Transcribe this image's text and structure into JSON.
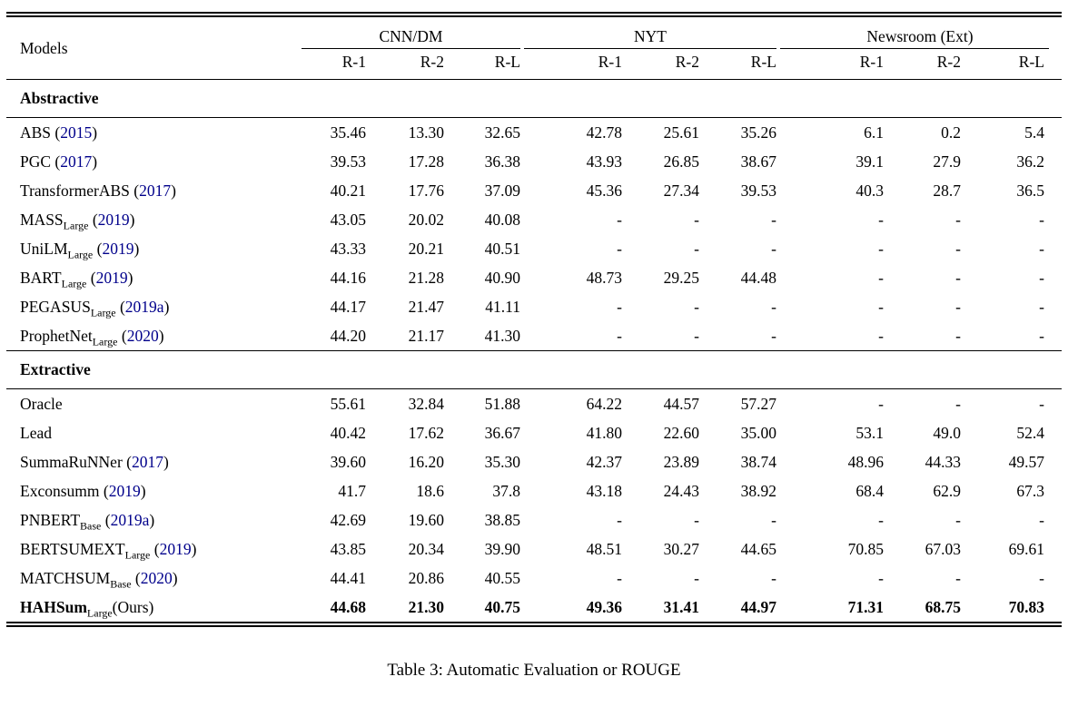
{
  "table": {
    "caption": "Table 3: Automatic Evaluation or ROUGE",
    "citation_color": "#00008B",
    "header": {
      "models_label": "Models",
      "groups": [
        {
          "label": "CNN/DM",
          "metrics": [
            "R-1",
            "R-2",
            "R-L"
          ]
        },
        {
          "label": "NYT",
          "metrics": [
            "R-1",
            "R-2",
            "R-L"
          ]
        },
        {
          "label": "Newsroom (Ext)",
          "metrics": [
            "R-1",
            "R-2",
            "R-L"
          ]
        }
      ]
    },
    "sections": [
      {
        "title": "Abstractive",
        "rows": [
          {
            "base": "ABS",
            "sub": "",
            "cite": "2015",
            "suffix": "",
            "bold": false,
            "values": [
              "35.46",
              "13.30",
              "32.65",
              "42.78",
              "25.61",
              "35.26",
              "6.1",
              "0.2",
              "5.4"
            ]
          },
          {
            "base": "PGC",
            "sub": "",
            "cite": "2017",
            "suffix": "",
            "bold": false,
            "values": [
              "39.53",
              "17.28",
              "36.38",
              "43.93",
              "26.85",
              "38.67",
              "39.1",
              "27.9",
              "36.2"
            ]
          },
          {
            "base": "TransformerABS",
            "sub": "",
            "cite": "2017",
            "suffix": "",
            "bold": false,
            "values": [
              "40.21",
              "17.76",
              "37.09",
              "45.36",
              "27.34",
              "39.53",
              "40.3",
              "28.7",
              "36.5"
            ]
          },
          {
            "base": "MASS",
            "sub": "Large",
            "cite": "2019",
            "suffix": "",
            "bold": false,
            "values": [
              "43.05",
              "20.02",
              "40.08",
              "-",
              "-",
              "-",
              "-",
              "-",
              "-"
            ]
          },
          {
            "base": "UniLM",
            "sub": "Large",
            "cite": "2019",
            "suffix": "",
            "bold": false,
            "values": [
              "43.33",
              "20.21",
              "40.51",
              "-",
              "-",
              "-",
              "-",
              "-",
              "-"
            ]
          },
          {
            "base": "BART",
            "sub": "Large",
            "cite": "2019",
            "suffix": "",
            "bold": false,
            "values": [
              "44.16",
              "21.28",
              "40.90",
              "48.73",
              "29.25",
              "44.48",
              "-",
              "-",
              "-"
            ]
          },
          {
            "base": "PEGASUS",
            "sub": "Large",
            "cite": "2019a",
            "suffix": "",
            "bold": false,
            "values": [
              "44.17",
              "21.47",
              "41.11",
              "-",
              "-",
              "-",
              "-",
              "-",
              "-"
            ]
          },
          {
            "base": "ProphetNet",
            "sub": "Large",
            "cite": "2020",
            "suffix": "",
            "bold": false,
            "values": [
              "44.20",
              "21.17",
              "41.30",
              "-",
              "-",
              "-",
              "-",
              "-",
              "-"
            ]
          }
        ]
      },
      {
        "title": "Extractive",
        "rows": [
          {
            "base": "Oracle",
            "sub": "",
            "cite": "",
            "suffix": "",
            "bold": false,
            "values": [
              "55.61",
              "32.84",
              "51.88",
              "64.22",
              "44.57",
              "57.27",
              "-",
              "-",
              "-"
            ]
          },
          {
            "base": "Lead",
            "sub": "",
            "cite": "",
            "suffix": "",
            "bold": false,
            "values": [
              "40.42",
              "17.62",
              "36.67",
              "41.80",
              "22.60",
              "35.00",
              "53.1",
              "49.0",
              "52.4"
            ]
          },
          {
            "base": "SummaRuNNer",
            "sub": "",
            "cite": "2017",
            "suffix": "",
            "bold": false,
            "values": [
              "39.60",
              "16.20",
              "35.30",
              "42.37",
              "23.89",
              "38.74",
              "48.96",
              "44.33",
              "49.57"
            ]
          },
          {
            "base": "Exconsumm",
            "sub": "",
            "cite": "2019",
            "suffix": "",
            "bold": false,
            "values": [
              "41.7",
              "18.6",
              "37.8",
              "43.18",
              "24.43",
              "38.92",
              "68.4",
              "62.9",
              "67.3"
            ]
          },
          {
            "base": "PNBERT",
            "sub": "Base",
            "cite": "2019a",
            "suffix": "",
            "bold": false,
            "values": [
              "42.69",
              "19.60",
              "38.85",
              "-",
              "-",
              "-",
              "-",
              "-",
              "-"
            ]
          },
          {
            "base": "BERTSUMEXT",
            "sub": "Large",
            "cite": "2019",
            "suffix": "",
            "bold": false,
            "values": [
              "43.85",
              "20.34",
              "39.90",
              "48.51",
              "30.27",
              "44.65",
              "70.85",
              "67.03",
              "69.61"
            ]
          },
          {
            "base": "MATCHSUM",
            "sub": "Base",
            "cite": "2020",
            "suffix": "",
            "bold": false,
            "values": [
              "44.41",
              "20.86",
              "40.55",
              "-",
              "-",
              "-",
              "-",
              "-",
              "-"
            ]
          },
          {
            "base": "HAHSum",
            "sub": "Large",
            "cite": "",
            "suffix": "(Ours)",
            "bold": true,
            "values": [
              "44.68",
              "21.30",
              "40.75",
              "49.36",
              "31.41",
              "44.97",
              "71.31",
              "68.75",
              "70.83"
            ]
          }
        ]
      }
    ]
  }
}
